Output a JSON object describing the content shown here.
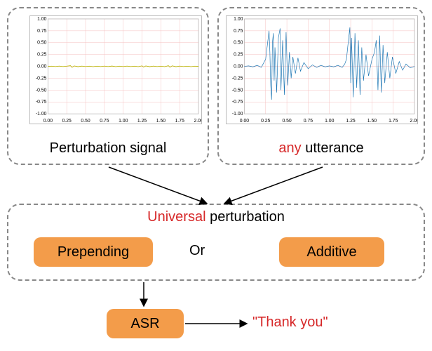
{
  "top_left": {
    "caption": "Perturbation signal",
    "chart": {
      "type": "line",
      "xlim": [
        0,
        2.0
      ],
      "ylim": [
        -1.0,
        1.0
      ],
      "xticks": [
        0.0,
        0.25,
        0.5,
        0.75,
        1.0,
        1.25,
        1.5,
        1.75,
        2.0
      ],
      "yticks": [
        -1.0,
        -0.75,
        -0.5,
        -0.25,
        0.0,
        0.25,
        0.5,
        0.75,
        1.0
      ],
      "line_color": "#b8b800",
      "line_width": 0.8,
      "background_color": "#ffffff",
      "grid_color": "#f5c0c0",
      "border_color": "#bbbbbb",
      "data": [
        [
          0.0,
          0.0
        ],
        [
          0.05,
          0.005
        ],
        [
          0.1,
          -0.004
        ],
        [
          0.15,
          0.006
        ],
        [
          0.2,
          -0.005
        ],
        [
          0.25,
          0.004
        ],
        [
          0.3,
          0.015
        ],
        [
          0.32,
          -0.02
        ],
        [
          0.35,
          0.01
        ],
        [
          0.4,
          -0.008
        ],
        [
          0.45,
          0.006
        ],
        [
          0.5,
          -0.005
        ],
        [
          0.55,
          0.004
        ],
        [
          0.6,
          -0.006
        ],
        [
          0.65,
          0.005
        ],
        [
          0.7,
          -0.004
        ],
        [
          0.75,
          0.006
        ],
        [
          0.8,
          -0.005
        ],
        [
          0.85,
          0.007
        ],
        [
          0.9,
          -0.006
        ],
        [
          0.95,
          0.005
        ],
        [
          1.0,
          -0.004
        ],
        [
          1.05,
          0.006
        ],
        [
          1.1,
          -0.005
        ],
        [
          1.15,
          0.004
        ],
        [
          1.2,
          -0.006
        ],
        [
          1.25,
          0.012
        ],
        [
          1.27,
          -0.015
        ],
        [
          1.3,
          0.01
        ],
        [
          1.35,
          -0.008
        ],
        [
          1.4,
          0.006
        ],
        [
          1.45,
          -0.005
        ],
        [
          1.5,
          0.004
        ],
        [
          1.55,
          -0.006
        ],
        [
          1.6,
          0.015
        ],
        [
          1.62,
          -0.018
        ],
        [
          1.65,
          0.012
        ],
        [
          1.7,
          -0.008
        ],
        [
          1.75,
          0.006
        ],
        [
          1.8,
          -0.005
        ],
        [
          1.85,
          0.004
        ],
        [
          1.9,
          -0.006
        ],
        [
          1.95,
          0.005
        ],
        [
          2.0,
          0.0
        ]
      ]
    }
  },
  "top_right": {
    "caption_prefix": "any",
    "caption_suffix": " utterance",
    "chart": {
      "type": "line",
      "xlim": [
        0,
        2.0
      ],
      "ylim": [
        -1.0,
        1.0
      ],
      "xticks": [
        0.0,
        0.25,
        0.5,
        0.75,
        1.0,
        1.25,
        1.5,
        1.75,
        2.0
      ],
      "yticks": [
        -1.0,
        -0.75,
        -0.5,
        -0.25,
        0.0,
        0.25,
        0.5,
        0.75,
        1.0
      ],
      "line_color": "#1f77b4",
      "line_width": 0.7,
      "background_color": "#ffffff",
      "grid_color": "#f5c0c0",
      "border_color": "#bbbbbb",
      "data": [
        [
          0.0,
          0.0
        ],
        [
          0.05,
          0.01
        ],
        [
          0.1,
          -0.01
        ],
        [
          0.15,
          0.02
        ],
        [
          0.2,
          -0.02
        ],
        [
          0.22,
          0.05
        ],
        [
          0.25,
          0.15
        ],
        [
          0.27,
          0.45
        ],
        [
          0.29,
          0.75
        ],
        [
          0.3,
          0.3
        ],
        [
          0.31,
          -0.4
        ],
        [
          0.32,
          -0.7
        ],
        [
          0.33,
          0.5
        ],
        [
          0.34,
          0.7
        ],
        [
          0.35,
          -0.3
        ],
        [
          0.36,
          0.4
        ],
        [
          0.38,
          -0.55
        ],
        [
          0.4,
          0.6
        ],
        [
          0.42,
          0.8
        ],
        [
          0.43,
          -0.5
        ],
        [
          0.45,
          0.55
        ],
        [
          0.47,
          -0.6
        ],
        [
          0.49,
          0.72
        ],
        [
          0.51,
          -0.4
        ],
        [
          0.53,
          0.3
        ],
        [
          0.55,
          -0.25
        ],
        [
          0.57,
          0.2
        ],
        [
          0.6,
          -0.15
        ],
        [
          0.63,
          0.18
        ],
        [
          0.66,
          -0.1
        ],
        [
          0.7,
          0.08
        ],
        [
          0.75,
          -0.05
        ],
        [
          0.8,
          0.03
        ],
        [
          0.85,
          -0.02
        ],
        [
          0.9,
          0.02
        ],
        [
          0.95,
          -0.01
        ],
        [
          1.0,
          0.01
        ],
        [
          1.05,
          -0.01
        ],
        [
          1.1,
          0.02
        ],
        [
          1.15,
          -0.02
        ],
        [
          1.18,
          0.05
        ],
        [
          1.2,
          0.15
        ],
        [
          1.22,
          0.5
        ],
        [
          1.24,
          0.82
        ],
        [
          1.25,
          -0.35
        ],
        [
          1.26,
          0.6
        ],
        [
          1.28,
          -0.65
        ],
        [
          1.3,
          0.7
        ],
        [
          1.32,
          -0.45
        ],
        [
          1.34,
          0.55
        ],
        [
          1.36,
          -0.6
        ],
        [
          1.38,
          0.4
        ],
        [
          1.4,
          -0.3
        ],
        [
          1.43,
          0.25
        ],
        [
          1.46,
          -0.2
        ],
        [
          1.5,
          0.15
        ],
        [
          1.53,
          0.3
        ],
        [
          1.55,
          0.55
        ],
        [
          1.57,
          -0.5
        ],
        [
          1.59,
          0.65
        ],
        [
          1.61,
          -0.55
        ],
        [
          1.63,
          0.45
        ],
        [
          1.65,
          -0.35
        ],
        [
          1.68,
          0.3
        ],
        [
          1.71,
          -0.25
        ],
        [
          1.74,
          0.2
        ],
        [
          1.78,
          -0.15
        ],
        [
          1.82,
          0.1
        ],
        [
          1.86,
          -0.08
        ],
        [
          1.9,
          0.05
        ],
        [
          1.95,
          -0.03
        ],
        [
          2.0,
          0.0
        ]
      ]
    }
  },
  "middle": {
    "universal_red": "Universal",
    "universal_rest": " perturbation",
    "prepend_label": "Prepending",
    "or_label": "Or",
    "additive_label": "Additive"
  },
  "bottom": {
    "asr_label": "ASR",
    "output_text": "\"Thank you\""
  },
  "arrows": {
    "stroke": "#000000",
    "stroke_width": 1.5,
    "head_size": 8
  }
}
